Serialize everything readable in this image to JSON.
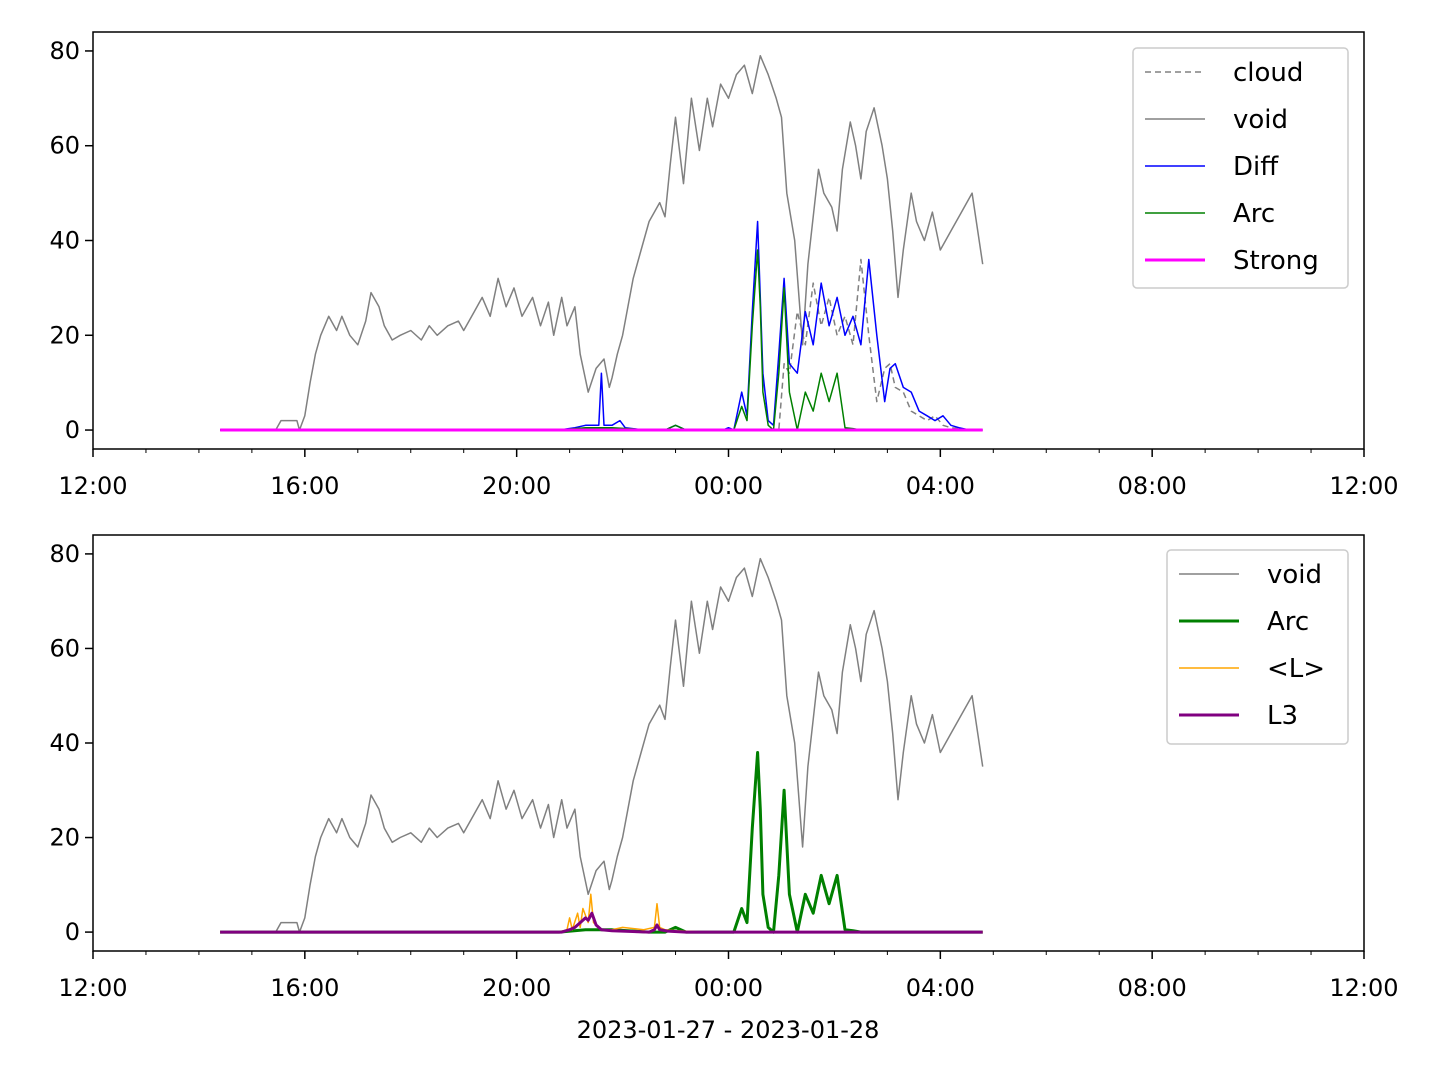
{
  "figure": {
    "xlabel": "2023-01-27 - 2023-01-28"
  },
  "x_axis": {
    "unit": "hours since 12:00 on 2023-01-27",
    "range": [
      0,
      24
    ],
    "major_ticks": [
      0,
      4,
      8,
      12,
      16,
      20,
      24
    ],
    "major_tick_labels": [
      "12:00",
      "16:00",
      "20:00",
      "00:00",
      "04:00",
      "08:00",
      "12:00"
    ],
    "minor_ticks": [
      1,
      2,
      3,
      5,
      6,
      7,
      9,
      10,
      11,
      13,
      14,
      15,
      17,
      18,
      19,
      21,
      22,
      23
    ]
  },
  "colors": {
    "cloud": "#808080",
    "void": "#808080",
    "Diff": "#0000ff",
    "Arc": "#008000",
    "Strong": "#ff00ff",
    "L_avg": "#ffa500",
    "L3": "#800080"
  },
  "chart_data": [
    {
      "type": "line",
      "ylim": [
        -4,
        84
      ],
      "yticks": [
        0,
        20,
        40,
        60,
        80
      ],
      "legend_position": "upper right",
      "legend": [
        {
          "label": "cloud",
          "color": "#808080",
          "style": "dashed",
          "width": 1.5
        },
        {
          "label": "void",
          "color": "#808080",
          "style": "solid",
          "width": 1.5
        },
        {
          "label": "Diff",
          "color": "#0000ff",
          "style": "solid",
          "width": 1.5
        },
        {
          "label": "Arc",
          "color": "#008000",
          "style": "solid",
          "width": 1.5
        },
        {
          "label": "Strong",
          "color": "#ff00ff",
          "style": "solid",
          "width": 3
        }
      ],
      "series": [
        {
          "name": "cloud",
          "color": "#808080",
          "style": "dashed",
          "width": 1.5,
          "x": [
            12.6,
            12.95,
            13.05,
            13.15,
            13.3,
            13.45,
            13.6,
            13.75,
            13.9,
            14.05,
            14.2,
            14.35,
            14.5,
            14.65,
            14.8,
            14.95,
            15.05,
            15.15,
            15.3,
            15.45,
            15.6,
            15.75,
            15.9,
            16.05,
            16.2,
            16.35,
            16.55
          ],
          "y": [
            0,
            0,
            14,
            12,
            25,
            18,
            31,
            22,
            28,
            20,
            24,
            18,
            36,
            20,
            6,
            13,
            14,
            9,
            8,
            4,
            3,
            2,
            3,
            1,
            0.5,
            0.3,
            0
          ]
        },
        {
          "name": "void",
          "color": "#808080",
          "style": "solid",
          "width": 1.5,
          "x": [
            2.4,
            3.45,
            3.55,
            3.85,
            3.9,
            4.0,
            4.1,
            4.2,
            4.3,
            4.45,
            4.6,
            4.7,
            4.85,
            5.0,
            5.15,
            5.25,
            5.4,
            5.5,
            5.65,
            5.8,
            6.0,
            6.2,
            6.35,
            6.5,
            6.7,
            6.9,
            7.0,
            7.2,
            7.35,
            7.5,
            7.65,
            7.8,
            7.95,
            8.1,
            8.3,
            8.45,
            8.6,
            8.7,
            8.85,
            8.95,
            9.1,
            9.2,
            9.35,
            9.5,
            9.65,
            9.75,
            9.8,
            9.9,
            10.0,
            10.1,
            10.2,
            10.35,
            10.5,
            10.7,
            10.8,
            10.9,
            11.0,
            11.15,
            11.3,
            11.45,
            11.6,
            11.7,
            11.85,
            12.0,
            12.15,
            12.3,
            12.45,
            12.6,
            12.75,
            12.9,
            13.0,
            13.1,
            13.25,
            13.4,
            13.5,
            13.6,
            13.7,
            13.8,
            13.95,
            14.05,
            14.15,
            14.3,
            14.4,
            14.5,
            14.6,
            14.75,
            14.9,
            15.0,
            15.1,
            15.2,
            15.3,
            15.45,
            15.55,
            15.7,
            15.85,
            16.0,
            16.2,
            16.4,
            16.6,
            16.8
          ],
          "y": [
            0,
            0,
            2,
            2,
            0,
            3,
            10,
            16,
            20,
            24,
            21,
            24,
            20,
            18,
            23,
            29,
            26,
            22,
            19,
            20,
            21,
            19,
            22,
            20,
            22,
            23,
            21,
            25,
            28,
            24,
            32,
            26,
            30,
            24,
            28,
            22,
            27,
            20,
            28,
            22,
            26,
            16,
            8,
            13,
            15,
            9,
            11,
            16,
            20,
            26,
            32,
            38,
            44,
            48,
            45,
            56,
            66,
            52,
            70,
            59,
            70,
            64,
            73,
            70,
            75,
            77,
            71,
            79,
            75,
            70,
            66,
            50,
            40,
            18,
            35,
            45,
            55,
            50,
            47,
            42,
            55,
            65,
            60,
            53,
            63,
            68,
            60,
            53,
            42,
            28,
            38,
            50,
            44,
            40,
            46,
            38,
            42,
            46,
            50,
            35
          ]
        },
        {
          "name": "Diff",
          "color": "#0000ff",
          "style": "solid",
          "width": 1.5,
          "x": [
            2.4,
            8.8,
            9.1,
            9.3,
            9.55,
            9.6,
            9.65,
            9.8,
            9.95,
            10.05,
            10.4,
            10.8,
            11.0,
            11.2,
            11.6,
            11.9,
            12.0,
            12.1,
            12.25,
            12.35,
            12.45,
            12.55,
            12.6,
            12.65,
            12.75,
            12.85,
            12.95,
            13.05,
            13.15,
            13.3,
            13.45,
            13.6,
            13.75,
            13.9,
            14.05,
            14.2,
            14.35,
            14.5,
            14.65,
            14.8,
            14.95,
            15.05,
            15.15,
            15.3,
            15.45,
            15.6,
            15.75,
            15.9,
            16.05,
            16.2,
            16.35,
            16.55
          ],
          "y": [
            0,
            0,
            0.5,
            1,
            1,
            12,
            1,
            1,
            2,
            0.5,
            0,
            0,
            1,
            0,
            0,
            0,
            0.5,
            0,
            8,
            3,
            25,
            44,
            28,
            12,
            2,
            1,
            16,
            32,
            14,
            12,
            25,
            18,
            31,
            22,
            28,
            20,
            24,
            18,
            36,
            20,
            6,
            13,
            14,
            9,
            8,
            4,
            3,
            2,
            3,
            1,
            0.5,
            0
          ]
        },
        {
          "name": "Arc",
          "color": "#008000",
          "style": "solid",
          "width": 1.5,
          "x": [
            2.4,
            8.8,
            9.3,
            9.8,
            10.5,
            10.8,
            11.0,
            11.2,
            11.6,
            11.9,
            12.0,
            12.1,
            12.25,
            12.35,
            12.45,
            12.55,
            12.6,
            12.65,
            12.75,
            12.85,
            12.95,
            13.05,
            13.15,
            13.3,
            13.45,
            13.6,
            13.75,
            13.9,
            14.05,
            14.2,
            14.35,
            14.5,
            14.65,
            14.8,
            14.95,
            15.05,
            15.15,
            15.3,
            16.0,
            16.8
          ],
          "y": [
            0,
            0,
            0.5,
            0.5,
            0,
            0,
            1,
            0,
            0,
            0,
            0,
            0,
            5,
            2,
            22,
            38,
            26,
            8,
            1,
            0,
            12,
            30,
            8,
            0,
            8,
            4,
            12,
            6,
            12,
            0.5,
            0.3,
            0,
            0,
            0,
            0,
            0,
            0,
            0,
            0,
            0
          ]
        },
        {
          "name": "Strong",
          "color": "#ff00ff",
          "style": "solid",
          "width": 3,
          "x": [
            2.4,
            16.8
          ],
          "y": [
            0,
            0
          ]
        }
      ]
    },
    {
      "type": "line",
      "ylim": [
        -4,
        84
      ],
      "yticks": [
        0,
        20,
        40,
        60,
        80
      ],
      "legend_position": "upper right",
      "legend": [
        {
          "label": "void",
          "color": "#808080",
          "style": "solid",
          "width": 1.5
        },
        {
          "label": "Arc",
          "color": "#008000",
          "style": "solid",
          "width": 3
        },
        {
          "label": "<L>",
          "color": "#ffa500",
          "style": "solid",
          "width": 1.5
        },
        {
          "label": "L3",
          "color": "#800080",
          "style": "solid",
          "width": 3
        }
      ],
      "series": [
        {
          "name": "void",
          "color": "#808080",
          "style": "solid",
          "width": 1.5,
          "x": [
            2.4,
            3.45,
            3.55,
            3.85,
            3.9,
            4.0,
            4.1,
            4.2,
            4.3,
            4.45,
            4.6,
            4.7,
            4.85,
            5.0,
            5.15,
            5.25,
            5.4,
            5.5,
            5.65,
            5.8,
            6.0,
            6.2,
            6.35,
            6.5,
            6.7,
            6.9,
            7.0,
            7.2,
            7.35,
            7.5,
            7.65,
            7.8,
            7.95,
            8.1,
            8.3,
            8.45,
            8.6,
            8.7,
            8.85,
            8.95,
            9.1,
            9.2,
            9.35,
            9.5,
            9.65,
            9.75,
            9.8,
            9.9,
            10.0,
            10.1,
            10.2,
            10.35,
            10.5,
            10.7,
            10.8,
            10.9,
            11.0,
            11.15,
            11.3,
            11.45,
            11.6,
            11.7,
            11.85,
            12.0,
            12.15,
            12.3,
            12.45,
            12.6,
            12.75,
            12.9,
            13.0,
            13.1,
            13.25,
            13.4,
            13.5,
            13.6,
            13.7,
            13.8,
            13.95,
            14.05,
            14.15,
            14.3,
            14.4,
            14.5,
            14.6,
            14.75,
            14.9,
            15.0,
            15.1,
            15.2,
            15.3,
            15.45,
            15.55,
            15.7,
            15.85,
            16.0,
            16.2,
            16.4,
            16.6,
            16.8
          ],
          "y": [
            0,
            0,
            2,
            2,
            0,
            3,
            10,
            16,
            20,
            24,
            21,
            24,
            20,
            18,
            23,
            29,
            26,
            22,
            19,
            20,
            21,
            19,
            22,
            20,
            22,
            23,
            21,
            25,
            28,
            24,
            32,
            26,
            30,
            24,
            28,
            22,
            27,
            20,
            28,
            22,
            26,
            16,
            8,
            13,
            15,
            9,
            11,
            16,
            20,
            26,
            32,
            38,
            44,
            48,
            45,
            56,
            66,
            52,
            70,
            59,
            70,
            64,
            73,
            70,
            75,
            77,
            71,
            79,
            75,
            70,
            66,
            50,
            40,
            18,
            35,
            45,
            55,
            50,
            47,
            42,
            55,
            65,
            60,
            53,
            63,
            68,
            60,
            53,
            42,
            28,
            38,
            50,
            44,
            40,
            46,
            38,
            42,
            46,
            50,
            35
          ]
        },
        {
          "name": "Arc",
          "color": "#008000",
          "style": "solid",
          "width": 3,
          "x": [
            2.4,
            8.8,
            9.3,
            9.8,
            10.5,
            10.8,
            11.0,
            11.2,
            11.6,
            11.9,
            12.0,
            12.1,
            12.25,
            12.35,
            12.45,
            12.55,
            12.6,
            12.65,
            12.75,
            12.85,
            12.95,
            13.05,
            13.15,
            13.3,
            13.45,
            13.6,
            13.75,
            13.9,
            14.05,
            14.2,
            14.35,
            14.5,
            14.65,
            14.8,
            14.95,
            15.05,
            15.15,
            15.3,
            16.0,
            16.8
          ],
          "y": [
            0,
            0,
            0.5,
            0.5,
            0,
            0,
            1,
            0,
            0,
            0,
            0,
            0,
            5,
            2,
            22,
            38,
            26,
            8,
            1,
            0,
            12,
            30,
            8,
            0,
            8,
            4,
            12,
            6,
            12,
            0.5,
            0.3,
            0,
            0,
            0,
            0,
            0,
            0,
            0,
            0,
            0
          ]
        },
        {
          "name": "<L>",
          "color": "#ffa500",
          "style": "solid",
          "width": 1.5,
          "x": [
            2.4,
            8.8,
            8.95,
            9.0,
            9.05,
            9.15,
            9.2,
            9.25,
            9.35,
            9.4,
            9.45,
            9.55,
            9.6,
            9.65,
            9.8,
            10.0,
            10.4,
            10.6,
            10.65,
            10.7,
            10.8,
            11.0,
            11.6,
            12.0,
            16.8
          ],
          "y": [
            0,
            0,
            0.5,
            3,
            0.5,
            4,
            1,
            5,
            2,
            8,
            2,
            1,
            0.5,
            0.5,
            0.5,
            1,
            0.5,
            1,
            6,
            1,
            0.5,
            0.3,
            0,
            0,
            0
          ]
        },
        {
          "name": "L3",
          "color": "#800080",
          "style": "solid",
          "width": 3,
          "x": [
            2.4,
            8.85,
            9.0,
            9.1,
            9.2,
            9.3,
            9.35,
            9.42,
            9.5,
            9.6,
            9.8,
            10.5,
            10.6,
            10.65,
            10.7,
            10.85,
            11.2,
            16.8
          ],
          "y": [
            0,
            0,
            0.5,
            1,
            2,
            3,
            2.5,
            4,
            1.5,
            0.5,
            0.3,
            0,
            0.5,
            1.5,
            0.5,
            0.2,
            0,
            0
          ]
        }
      ]
    }
  ]
}
